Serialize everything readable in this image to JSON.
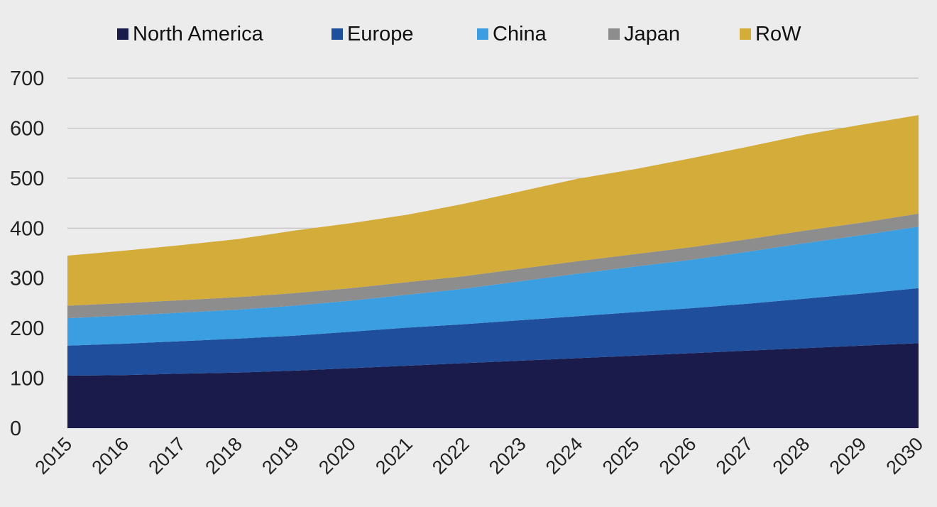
{
  "chart_data": {
    "type": "area",
    "stacked": true,
    "x": [
      2015,
      2016,
      2017,
      2018,
      2019,
      2020,
      2021,
      2022,
      2023,
      2024,
      2025,
      2026,
      2027,
      2028,
      2029,
      2030
    ],
    "x_tick_labels": [
      "2015",
      "2016",
      "2017",
      "2018",
      "2019",
      "2020",
      "2021",
      "2022",
      "2023",
      "2024",
      "2025",
      "2026",
      "2027",
      "2028",
      "2029",
      "2030"
    ],
    "ylim": [
      0,
      700
    ],
    "y_ticks": [
      0,
      100,
      200,
      300,
      400,
      500,
      600,
      700
    ],
    "y_tick_labels": [
      "0",
      "100",
      "200",
      "300",
      "400",
      "500",
      "600",
      "700"
    ],
    "grid": true,
    "legend_position": "top",
    "series": [
      {
        "name": "North America",
        "color": "#1b1b4b",
        "values": [
          105,
          106,
          109,
          111,
          115,
          120,
          125,
          130,
          135,
          140,
          145,
          150,
          155,
          160,
          165,
          170
        ]
      },
      {
        "name": "Europe",
        "color": "#1f4e9c",
        "values": [
          60,
          63,
          65,
          68,
          70,
          73,
          76,
          78,
          81,
          84,
          87,
          90,
          94,
          99,
          104,
          110
        ]
      },
      {
        "name": "China",
        "color": "#3a9ee0",
        "values": [
          55,
          56,
          57,
          58,
          60,
          62,
          66,
          71,
          78,
          85,
          91,
          97,
          104,
          111,
          117,
          123
        ]
      },
      {
        "name": "Japan",
        "color": "#8d8d8d",
        "values": [
          25,
          25,
          25,
          25,
          25,
          25,
          25,
          25,
          25,
          25,
          25,
          25,
          25,
          25,
          25,
          26
        ]
      },
      {
        "name": "RoW",
        "color": "#d4ac3a",
        "values": [
          100,
          105,
          110,
          116,
          125,
          130,
          135,
          145,
          155,
          165,
          170,
          178,
          185,
          192,
          196,
          197
        ]
      }
    ]
  }
}
